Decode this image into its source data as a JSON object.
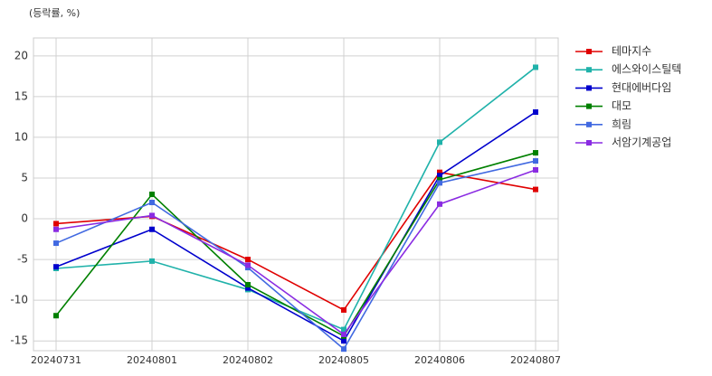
{
  "chart_data": {
    "type": "line",
    "ylabel": "(등락률, %)",
    "categories": [
      "20240731",
      "20240801",
      "20240802",
      "20240805",
      "20240806",
      "20240807"
    ],
    "series": [
      {
        "name": "테마지수",
        "color": "#e00000",
        "values": [
          -0.6,
          0.3,
          -5.0,
          -11.2,
          5.7,
          3.6
        ]
      },
      {
        "name": "에스와이스틸텍",
        "color": "#20b2aa",
        "values": [
          -6.1,
          -5.2,
          -8.7,
          -13.6,
          9.4,
          18.6
        ]
      },
      {
        "name": "현대에버다임",
        "color": "#0000cd",
        "values": [
          -5.9,
          -1.3,
          -8.5,
          -15.0,
          5.3,
          13.1
        ]
      },
      {
        "name": "대모",
        "color": "#008000",
        "values": [
          -11.9,
          3.0,
          -8.1,
          -14.4,
          4.8,
          8.1
        ]
      },
      {
        "name": "희림",
        "color": "#4169e1",
        "values": [
          -3.0,
          2.0,
          -6.0,
          -16.0,
          4.4,
          7.1
        ]
      },
      {
        "name": "서암기계공업",
        "color": "#8a2be2",
        "values": [
          -1.3,
          0.4,
          -5.7,
          -14.2,
          1.8,
          6.0
        ]
      }
    ],
    "ylim": [
      -16.2,
      22.2
    ],
    "yticks": [
      -15,
      -10,
      -5,
      0,
      5,
      10,
      15,
      20
    ],
    "grid": true,
    "legend": "outside-right"
  }
}
